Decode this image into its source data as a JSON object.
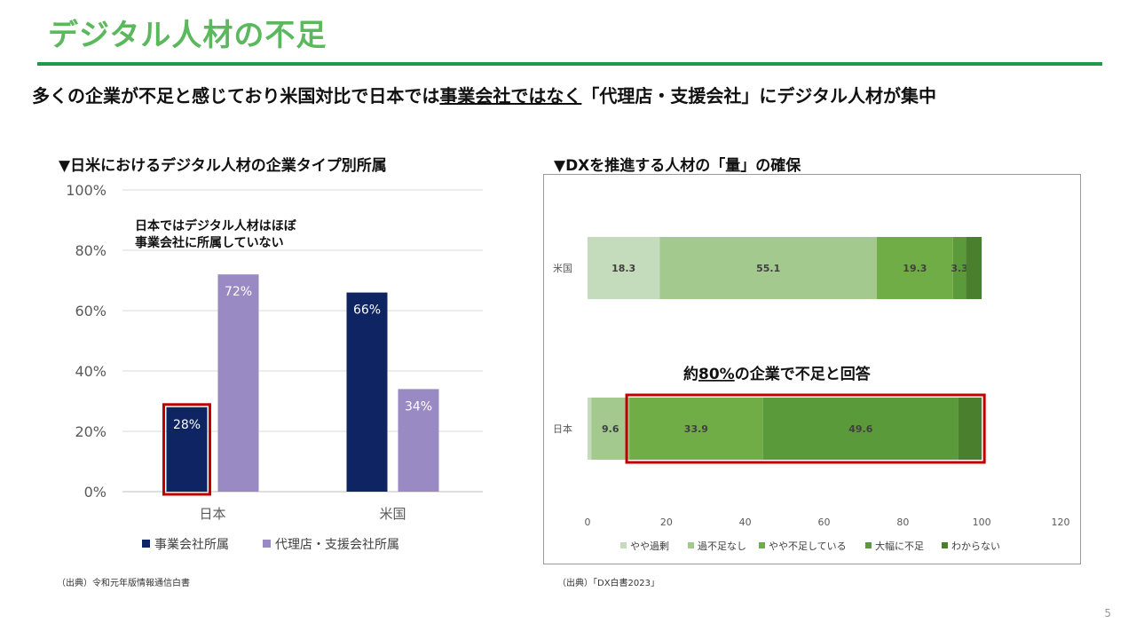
{
  "page": {
    "title": "デジタル人材の不足",
    "subtitle_part1": "多くの企業が不足と感じており米国対比で日本では",
    "subtitle_underlined": "事業会社ではなく",
    "subtitle_part2": "「代理店・支援会社」にデジタル人材が集中",
    "page_number": "5"
  },
  "left": {
    "heading": "▼日米におけるデジタル人材の企業タイプ別所属",
    "annotation_line1": "日本ではデジタル人材はほぼ",
    "annotation_line2": "事業会社に所属していない",
    "source": "（出典）令和元年版情報通信白書"
  },
  "right": {
    "heading": "▼DXを推進する人材の「量」の確保",
    "callout_prefix": "約",
    "callout_underlined": "80%",
    "callout_suffix": "の企業で不足と回答",
    "source": "（出典）「DX白書2023」"
  },
  "chart_data": [
    {
      "type": "bar",
      "title": "日米におけるデジタル人材の企業タイプ別所属",
      "categories": [
        "日本",
        "米国"
      ],
      "series": [
        {
          "name": "事業会社所属",
          "color": "#0f2462",
          "values": [
            28,
            66
          ],
          "labels": [
            "28%",
            "66%"
          ]
        },
        {
          "name": "代理店・支援会社所属",
          "color": "#9a8ac3",
          "values": [
            72,
            34
          ],
          "labels": [
            "72%",
            "34%"
          ]
        }
      ],
      "ylim": [
        0,
        100
      ],
      "yticks": [
        "0%",
        "20%",
        "40%",
        "60%",
        "80%",
        "100%"
      ],
      "ytick_values": [
        0,
        20,
        40,
        60,
        80,
        100
      ],
      "grid": true,
      "legend": "bottom",
      "highlight": {
        "category": "日本",
        "series": "事業会社所属"
      }
    },
    {
      "type": "bar",
      "orientation": "horizontal-stacked",
      "title": "DXを推進する人材の「量」の確保",
      "categories": [
        "米国",
        "日本"
      ],
      "series": [
        {
          "name": "やや過剰",
          "color": "#c5dcbc",
          "values": [
            18.3,
            1.0
          ],
          "labels": [
            "18.3",
            ""
          ]
        },
        {
          "name": "過不足なし",
          "color": "#a3c98f",
          "values": [
            55.1,
            9.6
          ],
          "labels": [
            "55.1",
            "9.6"
          ]
        },
        {
          "name": "やや不足している",
          "color": "#70ad47",
          "values": [
            19.3,
            33.9
          ],
          "labels": [
            "19.3",
            "33.9"
          ]
        },
        {
          "name": "大幅に不足",
          "color": "#5b9a3a",
          "values": [
            3.3,
            49.6
          ],
          "labels": [
            "3.3",
            "49.6"
          ]
        },
        {
          "name": "わからない",
          "color": "#4a7f2e",
          "values": [
            4.0,
            5.9
          ],
          "labels": [
            "",
            ""
          ]
        }
      ],
      "xlim": [
        0,
        120
      ],
      "xticks": [
        "0",
        "20",
        "40",
        "60",
        "80",
        "100",
        "120"
      ],
      "xtick_values": [
        0,
        20,
        40,
        60,
        80,
        100,
        120
      ],
      "legend": "bottom",
      "highlight": {
        "category": "日本",
        "from_series": "やや不足している",
        "to_series": "わからない"
      }
    }
  ]
}
